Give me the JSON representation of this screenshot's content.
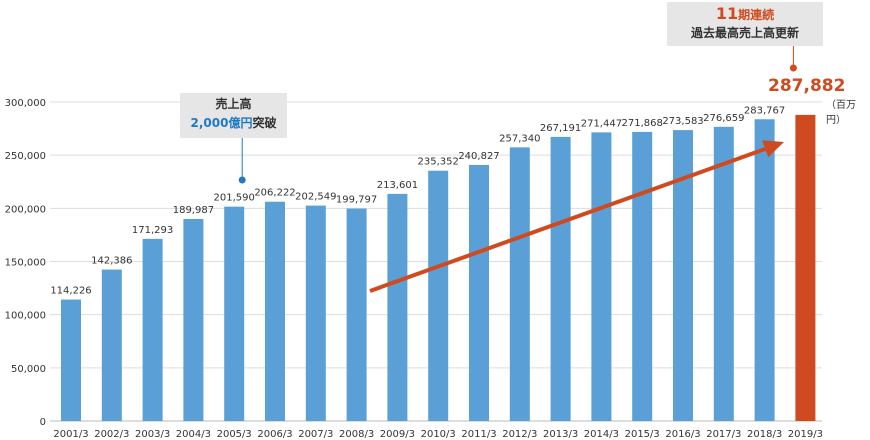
{
  "chart_data": {
    "type": "bar",
    "categories": [
      "2001/3",
      "2002/3",
      "2003/3",
      "2004/3",
      "2005/3",
      "2006/3",
      "2007/3",
      "2008/3",
      "2009/3",
      "2010/3",
      "2011/3",
      "2012/3",
      "2013/3",
      "2014/3",
      "2015/3",
      "2016/3",
      "2017/3",
      "2018/3",
      "2019/3"
    ],
    "values": [
      114226,
      142386,
      171293,
      189987,
      201590,
      206222,
      202549,
      199797,
      213601,
      235352,
      240827,
      257340,
      267191,
      271447,
      271868,
      273583,
      276659,
      283767,
      287882
    ],
    "value_labels": [
      "114,226",
      "142,386",
      "171,293",
      "189,987",
      "201,590",
      "206,222",
      "202,549",
      "199,797",
      "213,601",
      "235,352",
      "240,827",
      "257,340",
      "267,191",
      "271,447",
      "271,868",
      "273,583",
      "276,659",
      "283,767",
      "287,882"
    ],
    "y_ticks": [
      0,
      50000,
      100000,
      150000,
      200000,
      250000,
      300000
    ],
    "y_tick_labels": [
      "0",
      "50,000",
      "100,000",
      "150,000",
      "200,000",
      "250,000",
      "300,000"
    ],
    "ylim": [
      0,
      300000
    ],
    "unit": "（百万円）",
    "grid": true,
    "colors": {
      "bar": "#5aa0d6",
      "highlight_bar": "#d04a1f",
      "grid": "#dddddd",
      "marker_blue": "#1f7ac2",
      "arrow": "#d04a1f"
    },
    "annotations": {
      "milestone": {
        "category": "2005/3",
        "line1": "売上高",
        "line2_value": "2,000億円",
        "line2_suffix": "突破"
      },
      "record": {
        "category": "2019/3",
        "count": "11",
        "line1_suffix": "期連続",
        "line2": "過去最高売上高更新",
        "value": "287,882"
      }
    }
  }
}
